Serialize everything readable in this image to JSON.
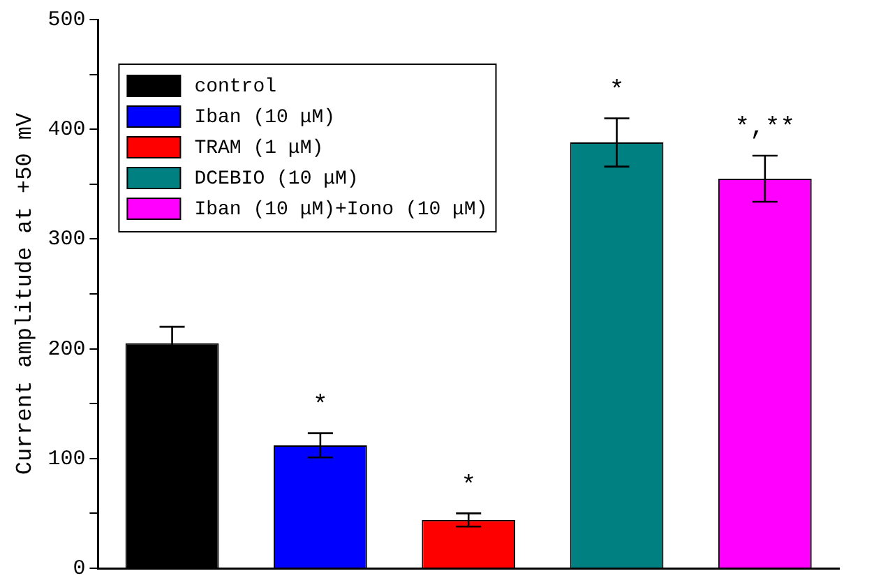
{
  "chart_data": {
    "type": "bar",
    "ylabel": "Current amplitude at +50 mV",
    "categories": [
      null,
      null,
      null,
      null,
      null
    ],
    "series": [
      {
        "name": "control",
        "color": "#000000",
        "values": [
          205,
          null,
          null,
          null,
          null
        ],
        "errors": [
          15,
          null,
          null,
          null,
          null
        ]
      },
      {
        "name": "Iban (10 μM)",
        "color": "#0000ff",
        "values": [
          null,
          112,
          null,
          null,
          null
        ],
        "errors": [
          null,
          11,
          null,
          null,
          null
        ]
      },
      {
        "name": "TRAM (1 μM)",
        "color": "#ff0000",
        "values": [
          null,
          null,
          44,
          null,
          null
        ],
        "errors": [
          null,
          null,
          6,
          null,
          null
        ]
      },
      {
        "name": "DCEBIO (10 μM)",
        "color": "#008080",
        "values": [
          null,
          null,
          null,
          388,
          null
        ],
        "errors": [
          null,
          null,
          null,
          22,
          null
        ]
      },
      {
        "name": "Iban (10 μM)+Iono (10 μM)",
        "color": "#ff00ff",
        "values": [
          null,
          null,
          null,
          null,
          355
        ],
        "errors": [
          null,
          null,
          null,
          null,
          21
        ]
      }
    ],
    "annotations": [
      "*",
      "*",
      "*",
      "*,**"
    ],
    "ylim": [
      0,
      500
    ],
    "yticks": [
      0,
      {
        "value": 50,
        "label": null
      },
      100,
      {
        "value": 150,
        "label": null
      },
      200,
      {
        "value": 250,
        "label": null
      },
      300,
      {
        "value": 350,
        "label": null
      },
      400,
      {
        "value": 450,
        "label": null
      },
      500
    ],
    "grid": false,
    "legend": "top left"
  }
}
